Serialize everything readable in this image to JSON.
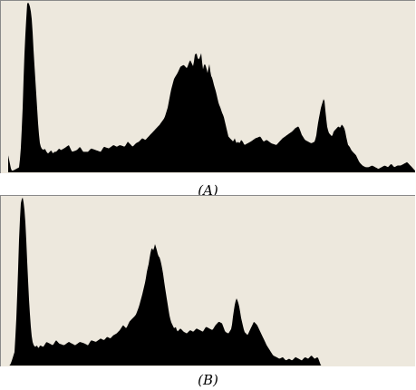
{
  "panel_a": {
    "caption": "(A)"
  },
  "panel_b": {
    "caption": "(B)"
  },
  "colors": {
    "background": "#ede8dd",
    "bars": "#000000",
    "frame_dark": "#8a8a8a",
    "frame_light": "#ffffff"
  },
  "chart_data": [
    {
      "type": "area",
      "title": "",
      "xlabel": "",
      "ylabel": "",
      "xlim": [
        0,
        255
      ],
      "ylim": [
        0,
        100
      ],
      "grid": false,
      "x": [
        0,
        2,
        3,
        5,
        7,
        8,
        9,
        10,
        11,
        12,
        13,
        14,
        15,
        16,
        17,
        18,
        19,
        20,
        21,
        22,
        23,
        24,
        25,
        27,
        28,
        29,
        30,
        32,
        33,
        35,
        38,
        40,
        43,
        45,
        47,
        50,
        52,
        55,
        58,
        60,
        63,
        66,
        68,
        70,
        73,
        75,
        78,
        80,
        82,
        84,
        86,
        88,
        90,
        92,
        95,
        98,
        100,
        102,
        104,
        106,
        108,
        110,
        112,
        114,
        116,
        117,
        118,
        119,
        120,
        121,
        122,
        123,
        124,
        125,
        126,
        127,
        128,
        129,
        130,
        131,
        132,
        133,
        134,
        135,
        136,
        137,
        138,
        139,
        140,
        141,
        142,
        143,
        144,
        145,
        146,
        147,
        148,
        150,
        152,
        155,
        158,
        160,
        162,
        165,
        168,
        170,
        172,
        175,
        178,
        180,
        182,
        184,
        186,
        188,
        190,
        192,
        193,
        194,
        195,
        196,
        197,
        198,
        199,
        200,
        201,
        202,
        203,
        204,
        205,
        206,
        207,
        208,
        209,
        210,
        211,
        212,
        213,
        214,
        215,
        216,
        218,
        220,
        222,
        224,
        226,
        228,
        230,
        232,
        234,
        236,
        238,
        240,
        242,
        244,
        246,
        248,
        250,
        252,
        255
      ],
      "values": [
        10,
        1,
        1,
        2,
        3,
        15,
        35,
        65,
        85,
        100,
        99,
        96,
        88,
        70,
        55,
        40,
        25,
        16,
        14,
        13,
        14,
        12,
        11,
        13,
        11,
        12,
        12,
        14,
        13,
        14,
        16,
        12,
        13,
        15,
        12,
        12,
        14,
        13,
        12,
        15,
        14,
        16,
        15,
        16,
        15,
        18,
        15,
        17,
        18,
        20,
        19,
        21,
        23,
        25,
        28,
        32,
        38,
        48,
        55,
        58,
        62,
        63,
        61,
        66,
        62,
        69,
        70,
        66,
        67,
        70,
        60,
        64,
        62,
        58,
        64,
        57,
        55,
        51,
        48,
        44,
        40,
        38,
        35,
        33,
        29,
        25,
        21,
        20,
        19,
        18,
        20,
        17,
        18,
        17,
        19,
        18,
        16,
        17,
        18,
        20,
        21,
        18,
        19,
        17,
        16,
        18,
        20,
        22,
        24,
        26,
        27,
        22,
        19,
        18,
        17,
        18,
        21,
        28,
        33,
        38,
        41,
        44,
        34,
        26,
        23,
        22,
        21,
        24,
        25,
        26,
        27,
        26,
        28,
        27,
        25,
        20,
        16,
        15,
        13,
        12,
        10,
        6,
        4,
        3,
        3,
        4,
        3,
        2,
        3,
        4,
        3,
        5,
        3,
        4,
        4,
        5,
        6,
        4,
        1
      ]
    },
    {
      "type": "area",
      "title": "",
      "xlabel": "",
      "ylabel": "",
      "xlim": [
        0,
        255
      ],
      "ylim": [
        0,
        100
      ],
      "grid": false,
      "x": [
        0,
        1,
        2,
        3,
        4,
        5,
        6,
        7,
        8,
        9,
        10,
        11,
        12,
        13,
        14,
        15,
        16,
        17,
        18,
        19,
        20,
        22,
        24,
        26,
        28,
        30,
        32,
        35,
        38,
        40,
        42,
        45,
        48,
        50,
        52,
        55,
        58,
        60,
        62,
        64,
        66,
        68,
        70,
        72,
        74,
        76,
        78,
        80,
        82,
        84,
        86,
        87,
        88,
        89,
        90,
        91,
        92,
        93,
        94,
        95,
        96,
        97,
        98,
        99,
        100,
        101,
        102,
        103,
        104,
        105,
        106,
        107,
        108,
        110,
        112,
        114,
        116,
        118,
        120,
        122,
        124,
        126,
        128,
        130,
        132,
        134,
        136,
        138,
        140,
        141,
        142,
        143,
        144,
        145,
        146,
        147,
        148,
        150,
        152,
        154,
        156,
        158,
        160,
        162,
        164,
        166,
        168,
        170,
        172,
        174,
        176,
        178,
        180,
        182,
        184,
        186,
        188,
        190,
        192,
        194,
        196,
        198,
        200,
        255
      ],
      "values": [
        0,
        0,
        2,
        5,
        8,
        25,
        50,
        80,
        97,
        100,
        95,
        82,
        60,
        40,
        25,
        15,
        12,
        11,
        12,
        10,
        12,
        11,
        14,
        13,
        12,
        15,
        13,
        12,
        14,
        13,
        12,
        14,
        13,
        12,
        15,
        14,
        16,
        15,
        17,
        16,
        18,
        19,
        21,
        24,
        22,
        26,
        28,
        30,
        35,
        42,
        50,
        56,
        60,
        66,
        70,
        68,
        72,
        69,
        65,
        64,
        60,
        55,
        48,
        42,
        36,
        30,
        26,
        24,
        22,
        23,
        20,
        21,
        22,
        20,
        19,
        21,
        20,
        22,
        21,
        20,
        23,
        22,
        21,
        24,
        26,
        25,
        20,
        19,
        22,
        30,
        36,
        40,
        38,
        34,
        28,
        24,
        20,
        18,
        22,
        26,
        24,
        20,
        16,
        12,
        9,
        6,
        5,
        4,
        5,
        3,
        4,
        3,
        5,
        4,
        3,
        5,
        4,
        6,
        4,
        5,
        0,
        0,
        0,
        0
      ]
    }
  ]
}
